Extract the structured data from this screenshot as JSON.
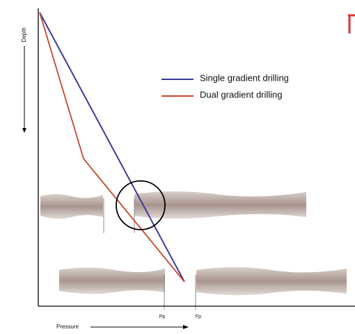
{
  "axes": {
    "y_label": "Depth",
    "x_label": "Pressure"
  },
  "legend": [
    {
      "label": "Single gradient drilling",
      "color": "#3a3a9a"
    },
    {
      "label": "Dual gradient drilling",
      "color": "#c8432a"
    }
  ],
  "markers": [
    "Pp",
    "Fp"
  ]
}
